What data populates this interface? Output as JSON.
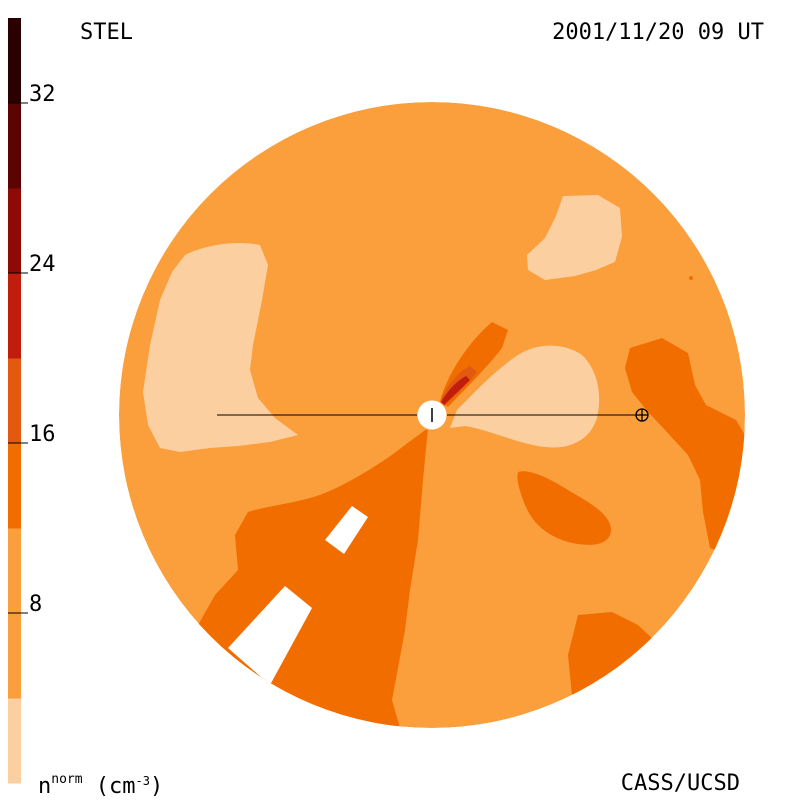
{
  "header": {
    "source": "STEL",
    "timestamp": "2001/11/20 09 UT"
  },
  "footer": {
    "credit": "CASS/UCSD",
    "unit_base": "n",
    "unit_super": "norm",
    "unit_open": " (cm",
    "unit_exp": "-3",
    "unit_close": ")"
  },
  "chart_data": {
    "type": "heatmap",
    "title": "",
    "colorbar": {
      "orientation": "vertical",
      "placement": "left",
      "range": [
        0,
        36
      ],
      "ticks": [
        8,
        16,
        24,
        32
      ],
      "tick_labels": [
        "8",
        "16",
        "24",
        "32"
      ],
      "levels": [
        {
          "from": 0,
          "to": 4,
          "color": "#fccfa0"
        },
        {
          "from": 4,
          "to": 12,
          "color": "#fb9e3c"
        },
        {
          "from": 12,
          "to": 16,
          "color": "#f26d00"
        },
        {
          "from": 16,
          "to": 20,
          "color": "#e35910"
        },
        {
          "from": 20,
          "to": 24,
          "color": "#c01d0c"
        },
        {
          "from": 24,
          "to": 28,
          "color": "#8e0a04"
        },
        {
          "from": 28,
          "to": 32,
          "color": "#5c0303"
        },
        {
          "from": 32,
          "to": 36,
          "color": "#2a0000"
        }
      ]
    },
    "background_color": "#fb9e3c"
  }
}
